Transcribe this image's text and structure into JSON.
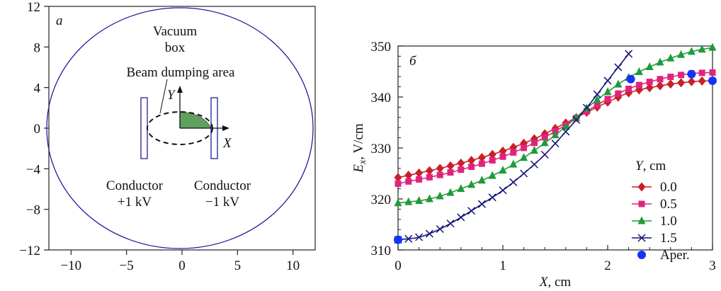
{
  "colors": {
    "dark_blue": "#1f1f9a",
    "red": "#c8202a",
    "magenta": "#e0247d",
    "green": "#1f9a3a",
    "navy": "#14147a",
    "blue": "#1432ff",
    "shade": "#5ea05e"
  },
  "chart_data": [
    {
      "type": "diagram",
      "panel_letter": "а",
      "xlim": [
        -12,
        12
      ],
      "ylim": [
        -12,
        12
      ],
      "x_ticks": [
        "−10",
        "−5",
        "0",
        "5",
        "10"
      ],
      "x_tick_values": [
        -10,
        -5,
        0,
        5,
        10
      ],
      "y_ticks": [
        "12",
        "8",
        "4",
        "0",
        "−4",
        "−8",
        "−12"
      ],
      "y_tick_values": [
        12,
        8,
        4,
        0,
        -4,
        -8,
        -12
      ],
      "labels": {
        "vacuum_box": "Vacuum box",
        "beam_dump": "Beam dumping area",
        "conductor_left": "Conductor +1 kV",
        "conductor_right": "Conductor −1 kV",
        "axis_x": "X",
        "axis_y": "Y"
      }
    },
    {
      "type": "line",
      "panel_letter": "б",
      "xlabel": "X, cm",
      "ylabel": "Ex, V/cm",
      "xlim": [
        0,
        3
      ],
      "ylim": [
        310,
        350
      ],
      "x_ticks": [
        "0",
        "1",
        "2",
        "3"
      ],
      "x_tick_values": [
        0,
        1,
        2,
        3
      ],
      "y_ticks": [
        "310",
        "320",
        "330",
        "340",
        "350"
      ],
      "y_tick_values": [
        310,
        320,
        330,
        340,
        350
      ],
      "legend_title": "Y, cm",
      "legend_position": "right",
      "series": [
        {
          "name": "0.0",
          "marker": "diamond",
          "color": "red",
          "x_max": 3.0,
          "points": [
            [
              0,
              324.2
            ],
            [
              0.5,
              326.5
            ],
            [
              1,
              329.4
            ],
            [
              1.3,
              331.8
            ],
            [
              1.6,
              334.9
            ],
            [
              1.8,
              337.0
            ],
            [
              2,
              339.0
            ],
            [
              2.2,
              340.8
            ],
            [
              2.5,
              342.2
            ],
            [
              2.8,
              343.0
            ],
            [
              3,
              343.2
            ]
          ]
        },
        {
          "name": "0.5",
          "marker": "square",
          "color": "magenta",
          "x_max": 3.0,
          "points": [
            [
              0,
              323.0
            ],
            [
              0.5,
              325.2
            ],
            [
              1,
              328.3
            ],
            [
              1.3,
              331.0
            ],
            [
              1.6,
              334.5
            ],
            [
              1.8,
              337.2
            ],
            [
              2,
              339.6
            ],
            [
              2.2,
              341.6
            ],
            [
              2.5,
              343.5
            ],
            [
              2.8,
              344.6
            ],
            [
              3,
              344.8
            ]
          ]
        },
        {
          "name": "1.0",
          "marker": "triangle",
          "color": "green",
          "x_max": 3.0,
          "points": [
            [
              0,
              319.2
            ],
            [
              0.3,
              320.0
            ],
            [
              0.6,
              322.0
            ],
            [
              1,
              325.6
            ],
            [
              1.3,
              329.5
            ],
            [
              1.6,
              334.2
            ],
            [
              1.8,
              337.8
            ],
            [
              2,
              341.0
            ],
            [
              2.2,
              343.8
            ],
            [
              2.5,
              346.8
            ],
            [
              2.8,
              348.9
            ],
            [
              3,
              349.7
            ]
          ]
        },
        {
          "name": "1.5",
          "marker": "cross",
          "color": "navy",
          "x_max": 2.22,
          "points": [
            [
              0,
              312.0
            ],
            [
              0.2,
              312.5
            ],
            [
              0.4,
              314.1
            ],
            [
              0.6,
              316.4
            ],
            [
              0.8,
              319.0
            ],
            [
              1,
              321.7
            ],
            [
              1.2,
              325.0
            ],
            [
              1.4,
              328.7
            ],
            [
              1.6,
              333.2
            ],
            [
              1.8,
              337.9
            ],
            [
              2,
              343.2
            ],
            [
              2.22,
              349.0
            ]
          ]
        },
        {
          "name": "Aper.",
          "marker": "circle",
          "color": "blue",
          "line": false,
          "points": [
            [
              0,
              312.0
            ],
            [
              2.22,
              343.5
            ],
            [
              2.8,
              344.5
            ],
            [
              3,
              343.2
            ]
          ]
        }
      ]
    }
  ]
}
